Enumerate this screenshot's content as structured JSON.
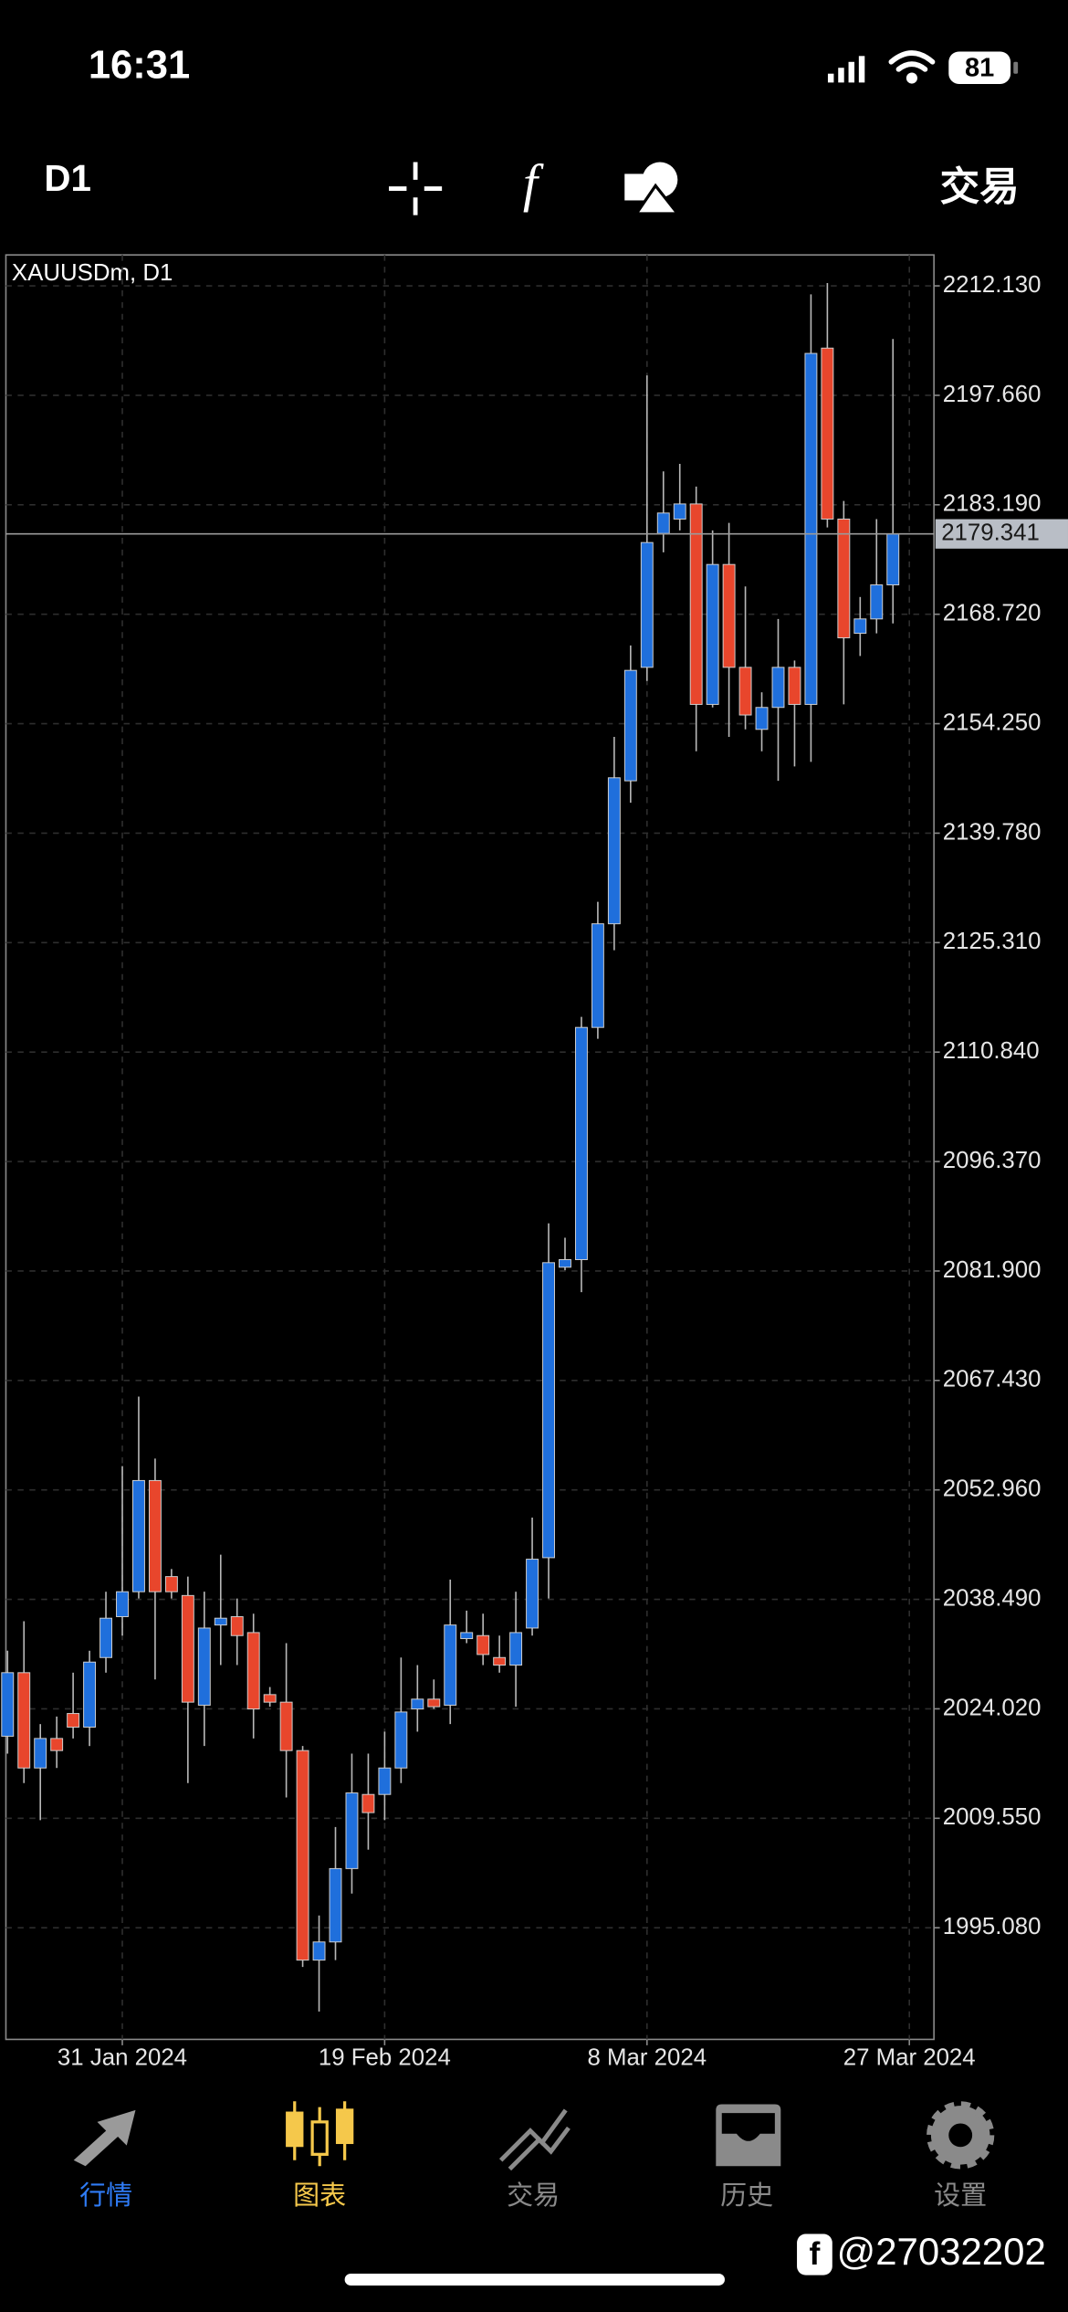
{
  "ui": {
    "status": {
      "time": "16:31",
      "battery": "81"
    },
    "toolbar": {
      "timeframe": "D1",
      "trade": "交易"
    },
    "tabs": [
      "行情",
      "图表",
      "交易",
      "历史",
      "设置"
    ],
    "watermark": "@27032202"
  },
  "chart_data": {
    "type": "candlestick",
    "title": "XAUUSDm, D1",
    "up_color": "#1f6fdc",
    "down_color": "#e8462c",
    "grid": true,
    "open": [
      2020.4,
      2028.8,
      2016.2,
      2020.1,
      2023.4,
      2021.6,
      2030.8,
      2036.2,
      2039.5,
      2054.2,
      2041.5,
      2039.0,
      2024.5,
      2035.1,
      2036.2,
      2034.1,
      2025.9,
      2024.9,
      2018.5,
      1990.8,
      1993.2,
      2002.9,
      2012.7,
      2012.7,
      2016.2,
      2024.0,
      2025.3,
      2024.5,
      2033.3,
      2033.7,
      2030.8,
      2029.8,
      2034.7,
      2044.0,
      2082.4,
      2083.4,
      2114.1,
      2127.8,
      2146.7,
      2161.7,
      2179.4,
      2181.3,
      2183.3,
      2156.8,
      2175.3,
      2161.7,
      2153.5,
      2156.4,
      2161.7,
      2156.8,
      2203.9,
      2181.3,
      2166.2,
      2168.1,
      2172.6
    ],
    "high": [
      2031.7,
      2035.6,
      2022.0,
      2023.0,
      2028.8,
      2031.7,
      2039.5,
      2056.1,
      2065.3,
      2057.1,
      2042.5,
      2041.5,
      2039.5,
      2044.4,
      2038.6,
      2036.6,
      2026.9,
      2032.7,
      2019.1,
      1996.7,
      2008.4,
      2018.1,
      2018.1,
      2021.0,
      2030.8,
      2029.8,
      2027.9,
      2041.1,
      2037.0,
      2036.6,
      2033.7,
      2039.5,
      2049.3,
      2088.2,
      2086.3,
      2115.5,
      2130.7,
      2152.5,
      2164.6,
      2200.3,
      2187.6,
      2188.6,
      2185.6,
      2179.8,
      2180.8,
      2172.4,
      2158.4,
      2168.1,
      2162.6,
      2211.0,
      2212.5,
      2183.7,
      2171.0,
      2181.3,
      2205.1
    ],
    "low": [
      2018.1,
      2014.2,
      2009.3,
      2016.2,
      2020.1,
      2019.1,
      2028.8,
      2033.7,
      2038.6,
      2027.9,
      2038.6,
      2014.2,
      2019.1,
      2029.8,
      2029.8,
      2020.1,
      2024.3,
      2012.3,
      1989.9,
      1984.0,
      1990.8,
      1999.6,
      2005.4,
      2009.3,
      2014.2,
      2021.0,
      2024.0,
      2022.0,
      2032.7,
      2029.8,
      2028.8,
      2024.3,
      2033.7,
      2038.6,
      2082.0,
      2079.1,
      2112.6,
      2124.3,
      2143.8,
      2159.9,
      2176.9,
      2179.8,
      2150.6,
      2156.4,
      2152.5,
      2153.5,
      2150.6,
      2146.7,
      2148.6,
      2149.2,
      2180.2,
      2156.8,
      2163.2,
      2166.2,
      2167.5
    ],
    "close": [
      2028.8,
      2016.2,
      2020.1,
      2018.5,
      2021.6,
      2030.2,
      2036.0,
      2039.5,
      2054.2,
      2039.5,
      2039.5,
      2024.9,
      2034.7,
      2036.0,
      2033.7,
      2024.0,
      2024.9,
      2018.5,
      1990.8,
      1993.2,
      2002.9,
      2012.9,
      2010.3,
      2016.2,
      2023.6,
      2025.3,
      2024.3,
      2035.1,
      2034.1,
      2031.2,
      2029.8,
      2034.1,
      2043.8,
      2083.0,
      2083.4,
      2114.1,
      2127.8,
      2147.1,
      2161.3,
      2178.2,
      2182.1,
      2183.3,
      2156.8,
      2175.3,
      2161.7,
      2155.4,
      2156.4,
      2161.7,
      2156.8,
      2203.2,
      2181.3,
      2165.6,
      2168.1,
      2172.6,
      2179.341
    ],
    "last_price": 2179.341,
    "xlim": [
      -0.1,
      56.5
    ],
    "xticks": [
      {
        "value": 7,
        "label": "31 Jan 2024"
      },
      {
        "value": 23,
        "label": "19 Feb 2024"
      },
      {
        "value": 39,
        "label": "8 Mar 2024"
      },
      {
        "value": 55,
        "label": "27 Mar 2024"
      }
    ],
    "ylim": [
      1980.32,
      2216.22
    ],
    "yticks": [
      {
        "value": 2212.13,
        "label": "2212.130"
      },
      {
        "value": 2197.66,
        "label": "2197.660"
      },
      {
        "value": 2183.19,
        "label": "2183.190"
      },
      {
        "value": 2168.72,
        "label": "2168.720"
      },
      {
        "value": 2154.25,
        "label": "2154.250"
      },
      {
        "value": 2139.78,
        "label": "2139.780"
      },
      {
        "value": 2125.31,
        "label": "2125.310"
      },
      {
        "value": 2110.84,
        "label": "2110.840"
      },
      {
        "value": 2096.37,
        "label": "2096.370"
      },
      {
        "value": 2081.9,
        "label": "2081.900"
      },
      {
        "value": 2067.43,
        "label": "2067.430"
      },
      {
        "value": 2052.96,
        "label": "2052.960"
      },
      {
        "value": 2038.49,
        "label": "2038.490"
      },
      {
        "value": 2024.02,
        "label": "2024.020"
      },
      {
        "value": 2009.55,
        "label": "2009.550"
      },
      {
        "value": 1995.08,
        "label": "1995.080"
      }
    ]
  }
}
